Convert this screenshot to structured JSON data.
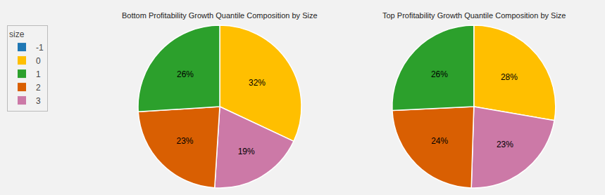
{
  "chart_data": [
    {
      "type": "pie",
      "title": "Bottom Profitability Growth Quantile Composition by Size",
      "values": [
        32,
        19,
        23,
        26
      ],
      "value_labels": [
        "32%",
        "19%",
        "23%",
        "26%"
      ],
      "colors": [
        "#ffbf00",
        "#cc79a7",
        "#d95f02",
        "#2ca02c"
      ],
      "legend": "upper left",
      "legend_title": "size",
      "series": [
        {
          "name": "-1",
          "color": "#1f77b4"
        },
        {
          "name": "0",
          "color": "#ffbf00"
        },
        {
          "name": "1",
          "color": "#2ca02c"
        },
        {
          "name": "2",
          "color": "#d95f02"
        },
        {
          "name": "3",
          "color": "#cc79a7"
        }
      ]
    },
    {
      "type": "pie",
      "title": "Top Profitability Growth Quantile Composition by Size",
      "values": [
        28,
        23,
        24,
        26
      ],
      "value_labels": [
        "28%",
        "23%",
        "24%",
        "26%"
      ],
      "colors": [
        "#ffbf00",
        "#cc79a7",
        "#d95f02",
        "#2ca02c"
      ]
    }
  ]
}
